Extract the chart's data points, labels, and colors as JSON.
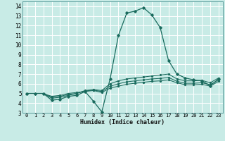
{
  "xlabel": "Humidex (Indice chaleur)",
  "background_color": "#c8ebe6",
  "grid_color": "#ffffff",
  "line_color": "#1a6b5e",
  "xlim": [
    -0.5,
    23.5
  ],
  "ylim": [
    3,
    14.5
  ],
  "xticks": [
    0,
    1,
    2,
    3,
    4,
    5,
    6,
    7,
    8,
    9,
    10,
    11,
    12,
    13,
    14,
    15,
    16,
    17,
    18,
    19,
    20,
    21,
    22,
    23
  ],
  "yticks": [
    3,
    4,
    5,
    6,
    7,
    8,
    9,
    10,
    11,
    12,
    13,
    14
  ],
  "lines": [
    {
      "x": [
        0,
        1,
        2,
        3,
        4,
        5,
        6,
        7,
        8,
        9,
        10,
        11,
        12,
        13,
        14,
        15,
        16,
        17,
        18,
        19,
        20,
        21,
        22,
        23
      ],
      "y": [
        5.0,
        5.0,
        5.0,
        4.3,
        4.4,
        4.7,
        4.8,
        5.2,
        4.2,
        3.1,
        6.5,
        11.0,
        13.3,
        13.5,
        13.85,
        13.1,
        11.8,
        8.4,
        7.0,
        6.6,
        6.4,
        6.3,
        5.8,
        6.5
      ]
    },
    {
      "x": [
        0,
        1,
        2,
        3,
        4,
        5,
        6,
        7,
        8,
        9,
        10,
        11,
        12,
        13,
        14,
        15,
        16,
        17,
        18,
        19,
        20,
        21,
        22,
        23
      ],
      "y": [
        5.0,
        5.0,
        5.0,
        4.5,
        4.6,
        4.8,
        5.0,
        5.3,
        5.4,
        5.3,
        6.0,
        6.3,
        6.5,
        6.6,
        6.7,
        6.8,
        6.9,
        7.0,
        6.5,
        6.3,
        6.3,
        6.35,
        6.1,
        6.6
      ]
    },
    {
      "x": [
        0,
        1,
        2,
        3,
        4,
        5,
        6,
        7,
        8,
        9,
        10,
        11,
        12,
        13,
        14,
        15,
        16,
        17,
        18,
        19,
        20,
        21,
        22,
        23
      ],
      "y": [
        5.0,
        5.0,
        5.0,
        4.6,
        4.7,
        4.9,
        5.0,
        5.25,
        5.35,
        5.2,
        5.75,
        6.0,
        6.2,
        6.3,
        6.4,
        6.5,
        6.55,
        6.65,
        6.25,
        6.05,
        6.05,
        6.1,
        5.9,
        6.4
      ]
    },
    {
      "x": [
        0,
        1,
        2,
        3,
        4,
        5,
        6,
        7,
        8,
        9,
        10,
        11,
        12,
        13,
        14,
        15,
        16,
        17,
        18,
        19,
        20,
        21,
        22,
        23
      ],
      "y": [
        5.0,
        5.0,
        5.0,
        4.7,
        4.8,
        5.0,
        5.1,
        5.2,
        5.3,
        5.1,
        5.55,
        5.75,
        5.95,
        6.05,
        6.15,
        6.25,
        6.3,
        6.4,
        6.1,
        5.9,
        5.9,
        5.95,
        5.75,
        6.25
      ]
    }
  ]
}
